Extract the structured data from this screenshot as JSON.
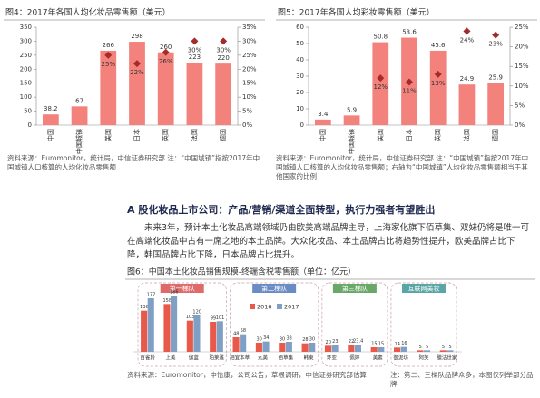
{
  "chart_data": [
    {
      "type": "bar",
      "title": "图4：2017年各国人均化妆品零售额（美元）",
      "categories": [
        "中国",
        "中国城镇",
        "美国",
        "日本",
        "英国",
        "法国",
        "德国"
      ],
      "series": [
        {
          "color": "#f4827c",
          "values": [
            38.2,
            67,
            266,
            298,
            260,
            223,
            220
          ]
        },
        {
          "type": "scatter",
          "axis": "y2",
          "color": "#a52a2a",
          "values": [
            null,
            null,
            25,
            22,
            26,
            30,
            30
          ],
          "value_labels": [
            null,
            null,
            "25%",
            "22%",
            "26%",
            "30%",
            "30%"
          ]
        }
      ],
      "ylim": [
        0,
        350
      ],
      "yticks": [
        0,
        50,
        100,
        150,
        200,
        250,
        300,
        350
      ],
      "y2lim": [
        0,
        35
      ],
      "y2ticks": [
        {
          "value": 0,
          "label": "0%"
        },
        {
          "value": 5,
          "label": "5%"
        },
        {
          "value": 10,
          "label": "10%"
        },
        {
          "value": 15,
          "label": "15%"
        },
        {
          "value": 20,
          "label": "20%"
        },
        {
          "value": 25,
          "label": "25%"
        },
        {
          "value": 30,
          "label": "30%"
        },
        {
          "value": 35,
          "label": "35%"
        }
      ]
    },
    {
      "type": "bar",
      "title": "图5：2017年各国人均彩妆零售额（美元）",
      "categories": [
        "中国",
        "中国城镇",
        "美国",
        "日本",
        "英国",
        "法国",
        "德国"
      ],
      "series": [
        {
          "color": "#f4827c",
          "values": [
            3.4,
            5.9,
            50.8,
            53.6,
            45.6,
            24.9,
            25.9
          ]
        },
        {
          "type": "scatter",
          "axis": "y2",
          "color": "#a52a2a",
          "values": [
            null,
            null,
            12,
            11,
            13,
            24,
            23
          ],
          "value_labels": [
            null,
            null,
            "12%",
            "11%",
            "13%",
            "24%",
            "23%"
          ]
        }
      ],
      "ylim": [
        0,
        60
      ],
      "yticks": [
        0,
        10,
        20,
        30,
        40,
        50,
        60
      ],
      "y2lim": [
        0,
        25
      ],
      "y2ticks": [
        {
          "value": 0,
          "label": "0%"
        },
        {
          "value": 5,
          "label": "5%"
        },
        {
          "value": 10,
          "label": "10%"
        },
        {
          "value": 15,
          "label": "15%"
        },
        {
          "value": 20,
          "label": "20%"
        },
        {
          "value": 25,
          "label": "25%"
        }
      ]
    },
    {
      "type": "grouped_bar",
      "title": "图6：中国本土化妆品销售规模-终端含税零售额（单位：亿元）",
      "series": [
        {
          "name": "2016",
          "color": "#e8594a"
        },
        {
          "name": "2017",
          "color": "#7f9fc5"
        }
      ],
      "groups": [
        {
          "name": "第一梯队",
          "color": "#e06a6a",
          "categories": [
            "百雀羚",
            "上美",
            "伽蓝",
            "珀莱雅"
          ],
          "values": [
            [
              136,
              177
            ],
            [
              158,
              186
            ],
            [
              103,
              120
            ],
            [
              99,
              101
            ]
          ]
        },
        {
          "name": "第二梯队",
          "color": "#6a8cc4",
          "categories": [
            "相宜本草",
            "丸美",
            "佰草集",
            "韩束"
          ],
          "values": [
            [
              48,
              58
            ],
            [
              30,
              34
            ],
            [
              30,
              33
            ],
            [
              28,
              30
            ]
          ]
        },
        {
          "name": "第三梯队",
          "color": "#6aa86a",
          "categories": [
            "环亚",
            "佩婷",
            "美素"
          ],
          "values": [
            [
              20,
              23
            ],
            [
              22,
              23.4
            ],
            [
              15,
              15
            ]
          ]
        },
        {
          "name": "互联网美妆",
          "color": "#5aa6a6",
          "categories": [
            "御泥坊",
            "阿芙",
            "膜法世家"
          ],
          "values": [
            [
              14,
              16
            ],
            [
              5,
              5
            ],
            [
              5,
              5
            ]
          ]
        }
      ]
    }
  ],
  "document": {
    "source4": "资料来源：Euromonitor，统计局，中信证券研究部 注：“中国城镇”指按2017年中国城镇人口核算的人均化妆品零售额",
    "source5": "资料来源：Euromonitor，统计局，中信证券研究部 注：“中国城镇”指按2017年中国城镇人口核算的人均化妆品零售额；右轴为“中国城镇”人均化妆品零售额相当于其他国家的比例",
    "heading": "A 股化妆品上市公司：产品/营销/渠道全面转型，执行力强者有望胜出",
    "paragraph": "未来3年，预计本土化妆品高端领域仍由欧美高端品牌主导，上海家化旗下佰草集、双妹仍将是唯一可在高端化妆品中占有一席之地的本土品牌。大众化妆品、本土品牌占比将趋势性提升，欧美品牌占比下降，韩国品牌占比下降，日本品牌占比提升。",
    "source6": "资料来源：Euromonitor，中怡康，公司公告，草根调研，中信证券研究部估算",
    "note6": "注：第二、三梯队品牌众多，本图仅列举部分品牌"
  }
}
